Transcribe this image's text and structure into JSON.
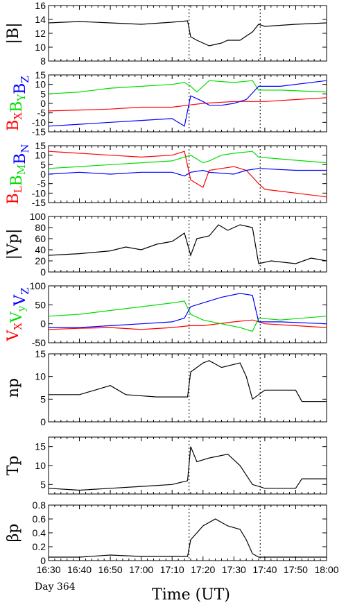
{
  "figure": {
    "x_title": "Time (UT)",
    "day_label": "Day 364",
    "x_ticks": [
      "16:30",
      "16:40",
      "16:50",
      "17:00",
      "17:10",
      "17:20",
      "17:30",
      "17:40",
      "17:50",
      "18:00"
    ]
  },
  "colors": {
    "black": "#000000",
    "red": "#ff0000",
    "green": "#00dd00",
    "blue": "#0000ff"
  },
  "chart_data": [
    {
      "type": "line",
      "ylabel": "|B|",
      "ylim": [
        8,
        16
      ],
      "yticks": [
        8,
        10,
        12,
        14,
        16
      ],
      "x_range_minutes": [
        0,
        90
      ],
      "boundaries_minutes": [
        45.5,
        68.5
      ],
      "series": [
        {
          "color": "black",
          "values": [
            [
              0,
              13.5
            ],
            [
              10,
              13.7
            ],
            [
              20,
              13.5
            ],
            [
              30,
              13.3
            ],
            [
              40,
              13.6
            ],
            [
              45,
              13.8
            ],
            [
              46,
              11.5
            ],
            [
              48,
              11
            ],
            [
              52,
              10.2
            ],
            [
              56,
              10.6
            ],
            [
              58,
              11
            ],
            [
              62,
              11
            ],
            [
              66,
              12.2
            ],
            [
              68,
              13.3
            ],
            [
              70,
              13
            ],
            [
              80,
              13.3
            ],
            [
              90,
              13.5
            ]
          ]
        }
      ]
    },
    {
      "type": "line",
      "ylabel_parts": [
        {
          "t": "B",
          "sub": "X",
          "color": "red"
        },
        {
          "t": "B",
          "sub": "Y",
          "color": "green"
        },
        {
          "t": "B",
          "sub": "Z",
          "color": "blue"
        }
      ],
      "ylim": [
        -15,
        15
      ],
      "yticks": [
        -15,
        -10,
        -5,
        0,
        5,
        10,
        15
      ],
      "x_range_minutes": [
        0,
        90
      ],
      "boundaries_minutes": [
        45.5,
        68.5
      ],
      "series": [
        {
          "color": "red",
          "values": [
            [
              0,
              -4
            ],
            [
              10,
              -3.5
            ],
            [
              20,
              -3
            ],
            [
              30,
              -2
            ],
            [
              40,
              -2
            ],
            [
              45,
              -1
            ],
            [
              50,
              0
            ],
            [
              60,
              1
            ],
            [
              70,
              1
            ],
            [
              80,
              2
            ],
            [
              90,
              3
            ]
          ]
        },
        {
          "color": "green",
          "values": [
            [
              0,
              5
            ],
            [
              10,
              6
            ],
            [
              20,
              8
            ],
            [
              30,
              9
            ],
            [
              40,
              10
            ],
            [
              44,
              11
            ],
            [
              46,
              9
            ],
            [
              48,
              6
            ],
            [
              52,
              12
            ],
            [
              60,
              11
            ],
            [
              66,
              12
            ],
            [
              68,
              7
            ],
            [
              75,
              7
            ],
            [
              90,
              6
            ]
          ]
        },
        {
          "color": "blue",
          "values": [
            [
              0,
              -12
            ],
            [
              10,
              -11
            ],
            [
              20,
              -10
            ],
            [
              30,
              -9
            ],
            [
              40,
              -8
            ],
            [
              44,
              -12
            ],
            [
              46,
              4
            ],
            [
              50,
              1
            ],
            [
              52,
              -1
            ],
            [
              56,
              -1
            ],
            [
              60,
              0
            ],
            [
              64,
              2
            ],
            [
              68,
              9
            ],
            [
              75,
              9
            ],
            [
              90,
              12
            ]
          ]
        }
      ]
    },
    {
      "type": "line",
      "ylabel_parts": [
        {
          "t": "B",
          "sub": "L",
          "color": "red"
        },
        {
          "t": "B",
          "sub": "M",
          "color": "green"
        },
        {
          "t": "B",
          "sub": "N",
          "color": "blue"
        }
      ],
      "ylim": [
        -15,
        15
      ],
      "yticks": [
        -15,
        -10,
        -5,
        0,
        5,
        10,
        15
      ],
      "x_range_minutes": [
        0,
        90
      ],
      "boundaries_minutes": [
        45.5,
        68.5
      ],
      "series": [
        {
          "color": "red",
          "values": [
            [
              0,
              12
            ],
            [
              10,
              11
            ],
            [
              20,
              10
            ],
            [
              30,
              9
            ],
            [
              40,
              10
            ],
            [
              44,
              12
            ],
            [
              46,
              -3
            ],
            [
              50,
              -7
            ],
            [
              52,
              2
            ],
            [
              56,
              3
            ],
            [
              60,
              4
            ],
            [
              64,
              2
            ],
            [
              68,
              -5
            ],
            [
              70,
              -8
            ],
            [
              80,
              -10
            ],
            [
              90,
              -12
            ]
          ]
        },
        {
          "color": "green",
          "values": [
            [
              0,
              3
            ],
            [
              10,
              4
            ],
            [
              20,
              5
            ],
            [
              30,
              6
            ],
            [
              40,
              7
            ],
            [
              44,
              9
            ],
            [
              46,
              10
            ],
            [
              50,
              6
            ],
            [
              52,
              7
            ],
            [
              56,
              10
            ],
            [
              60,
              11
            ],
            [
              66,
              12
            ],
            [
              68,
              9
            ],
            [
              75,
              8
            ],
            [
              90,
              6
            ]
          ]
        },
        {
          "color": "blue",
          "values": [
            [
              0,
              0
            ],
            [
              10,
              1
            ],
            [
              20,
              0
            ],
            [
              30,
              1
            ],
            [
              40,
              1
            ],
            [
              44,
              -1
            ],
            [
              46,
              1
            ],
            [
              50,
              2
            ],
            [
              52,
              1
            ],
            [
              60,
              0
            ],
            [
              64,
              2
            ],
            [
              68,
              3
            ],
            [
              80,
              2
            ],
            [
              90,
              2
            ]
          ]
        }
      ]
    },
    {
      "type": "line",
      "ylabel": "|Vp|",
      "ylim": [
        0,
        100
      ],
      "yticks": [
        0,
        20,
        40,
        60,
        80,
        100
      ],
      "x_range_minutes": [
        0,
        90
      ],
      "boundaries_minutes": [
        45.5,
        68.5
      ],
      "series": [
        {
          "color": "black",
          "values": [
            [
              0,
              30
            ],
            [
              10,
              33
            ],
            [
              20,
              38
            ],
            [
              25,
              45
            ],
            [
              30,
              40
            ],
            [
              35,
              50
            ],
            [
              40,
              55
            ],
            [
              44,
              70
            ],
            [
              46,
              30
            ],
            [
              48,
              60
            ],
            [
              52,
              65
            ],
            [
              55,
              85
            ],
            [
              58,
              75
            ],
            [
              62,
              85
            ],
            [
              66,
              80
            ],
            [
              68,
              15
            ],
            [
              72,
              20
            ],
            [
              80,
              15
            ],
            [
              85,
              25
            ],
            [
              90,
              20
            ]
          ]
        }
      ]
    },
    {
      "type": "line",
      "ylabel_parts": [
        {
          "t": "V",
          "sub": "X",
          "color": "red"
        },
        {
          "t": "V",
          "sub": "y",
          "color": "green"
        },
        {
          "t": "V",
          "sub": "Z",
          "color": "blue"
        }
      ],
      "ylim": [
        -50,
        100
      ],
      "yticks": [
        -50,
        0,
        50,
        100
      ],
      "x_range_minutes": [
        0,
        90
      ],
      "boundaries_minutes": [
        45.5,
        68.5
      ],
      "series": [
        {
          "color": "red",
          "values": [
            [
              0,
              -15
            ],
            [
              10,
              -12
            ],
            [
              20,
              -10
            ],
            [
              30,
              -15
            ],
            [
              40,
              -10
            ],
            [
              46,
              -5
            ],
            [
              50,
              -5
            ],
            [
              60,
              5
            ],
            [
              66,
              10
            ],
            [
              70,
              0
            ],
            [
              80,
              -5
            ],
            [
              90,
              -10
            ]
          ]
        },
        {
          "color": "green",
          "values": [
            [
              0,
              20
            ],
            [
              10,
              25
            ],
            [
              20,
              35
            ],
            [
              30,
              45
            ],
            [
              40,
              55
            ],
            [
              44,
              60
            ],
            [
              46,
              25
            ],
            [
              50,
              10
            ],
            [
              56,
              0
            ],
            [
              62,
              -10
            ],
            [
              66,
              -20
            ],
            [
              68,
              15
            ],
            [
              75,
              10
            ],
            [
              90,
              20
            ]
          ]
        },
        {
          "color": "blue",
          "values": [
            [
              0,
              -10
            ],
            [
              10,
              -10
            ],
            [
              20,
              -5
            ],
            [
              30,
              0
            ],
            [
              40,
              5
            ],
            [
              44,
              15
            ],
            [
              46,
              45
            ],
            [
              50,
              55
            ],
            [
              56,
              70
            ],
            [
              62,
              80
            ],
            [
              66,
              75
            ],
            [
              68,
              5
            ],
            [
              75,
              5
            ],
            [
              90,
              0
            ]
          ]
        }
      ]
    },
    {
      "type": "line",
      "ylabel": "np",
      "ylim": [
        0,
        15
      ],
      "yticks": [
        0,
        5,
        10,
        15
      ],
      "x_range_minutes": [
        0,
        90
      ],
      "boundaries_minutes": [
        45.5,
        68.5
      ],
      "series": [
        {
          "color": "black",
          "values": [
            [
              0,
              6
            ],
            [
              10,
              6
            ],
            [
              15,
              7
            ],
            [
              20,
              8
            ],
            [
              25,
              6
            ],
            [
              35,
              5.5
            ],
            [
              45,
              5.5
            ],
            [
              46,
              11
            ],
            [
              50,
              13
            ],
            [
              52,
              13.5
            ],
            [
              56,
              12
            ],
            [
              62,
              13
            ],
            [
              64,
              10
            ],
            [
              66,
              5
            ],
            [
              68,
              6
            ],
            [
              70,
              7
            ],
            [
              80,
              7
            ],
            [
              82,
              4.5
            ],
            [
              90,
              4.5
            ]
          ]
        }
      ]
    },
    {
      "type": "line",
      "ylabel": "Tp",
      "ylim": [
        2.5,
        17.5
      ],
      "yticks": [
        5,
        10,
        15
      ],
      "x_range_minutes": [
        0,
        90
      ],
      "boundaries_minutes": [
        45.5,
        68.5
      ],
      "series": [
        {
          "color": "black",
          "values": [
            [
              0,
              4
            ],
            [
              10,
              3.5
            ],
            [
              20,
              4
            ],
            [
              30,
              4.5
            ],
            [
              40,
              5
            ],
            [
              45,
              6
            ],
            [
              46,
              15
            ],
            [
              48,
              11
            ],
            [
              52,
              12
            ],
            [
              58,
              13
            ],
            [
              62,
              10
            ],
            [
              66,
              5
            ],
            [
              70,
              4
            ],
            [
              80,
              4
            ],
            [
              82,
              6.5
            ],
            [
              90,
              6.5
            ]
          ]
        }
      ]
    },
    {
      "type": "line",
      "ylabel": "βp",
      "ylim": [
        0,
        0.8
      ],
      "yticks": [
        0,
        0.2,
        0.4,
        0.6,
        0.8
      ],
      "x_range_minutes": [
        0,
        90
      ],
      "boundaries_minutes": [
        45.5,
        68.5
      ],
      "series": [
        {
          "color": "black",
          "values": [
            [
              0,
              0.05
            ],
            [
              10,
              0.05
            ],
            [
              20,
              0.08
            ],
            [
              30,
              0.06
            ],
            [
              40,
              0.06
            ],
            [
              45,
              0.06
            ],
            [
              46,
              0.3
            ],
            [
              50,
              0.5
            ],
            [
              54,
              0.6
            ],
            [
              58,
              0.5
            ],
            [
              62,
              0.45
            ],
            [
              64,
              0.3
            ],
            [
              66,
              0.1
            ],
            [
              68,
              0.05
            ],
            [
              80,
              0.05
            ],
            [
              90,
              0.05
            ]
          ]
        }
      ]
    }
  ]
}
